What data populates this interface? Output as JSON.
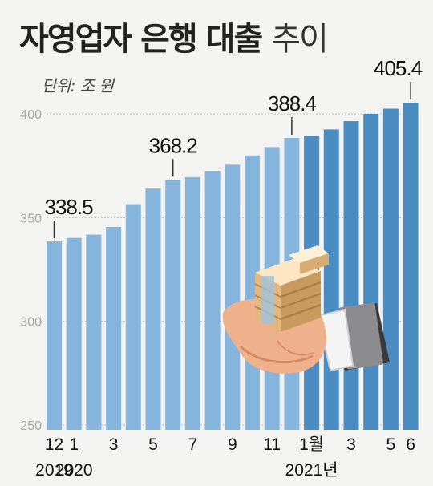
{
  "title": {
    "main": "자영업자 은행 대출",
    "light": "추이"
  },
  "unit": "단위: 조 원",
  "colors": {
    "bar_2019_2020": "#85b4dd",
    "bar_2021": "#4b8cc3",
    "background": "#f3f3f1"
  },
  "illustration": "hand-holding-money-icon",
  "chart_data": {
    "type": "bar",
    "title": "자영업자 은행 대출 추이",
    "ylabel": "단위: 조 원",
    "ylim": [
      250,
      410
    ],
    "yticks": [
      250,
      300,
      350,
      400
    ],
    "grid": true,
    "categories": [
      "2019-12",
      "2020-01",
      "2020-02",
      "2020-03",
      "2020-04",
      "2020-05",
      "2020-06",
      "2020-07",
      "2020-08",
      "2020-09",
      "2020-10",
      "2020-11",
      "2020-12",
      "2021-01",
      "2021-02",
      "2021-03",
      "2021-04",
      "2021-05",
      "2021-06"
    ],
    "values": [
      338.5,
      340.2,
      341.8,
      345.5,
      356.5,
      364.0,
      368.2,
      369.5,
      372.5,
      375.5,
      380.0,
      384.0,
      388.4,
      389.5,
      392.5,
      396.5,
      400.0,
      402.5,
      405.4
    ],
    "period": [
      "2019-2020",
      "2019-2020",
      "2019-2020",
      "2019-2020",
      "2019-2020",
      "2019-2020",
      "2019-2020",
      "2019-2020",
      "2019-2020",
      "2019-2020",
      "2019-2020",
      "2019-2020",
      "2019-2020",
      "2021",
      "2021",
      "2021",
      "2021",
      "2021",
      "2021"
    ],
    "x_tick_labels": [
      {
        "index": 0,
        "text": "12"
      },
      {
        "index": 1,
        "text": "1"
      },
      {
        "index": 3,
        "text": "3"
      },
      {
        "index": 5,
        "text": "5"
      },
      {
        "index": 7,
        "text": "7"
      },
      {
        "index": 9,
        "text": "9"
      },
      {
        "index": 11,
        "text": "11"
      },
      {
        "index": 13,
        "text": "1월"
      },
      {
        "index": 15,
        "text": "3"
      },
      {
        "index": 17,
        "text": "5"
      },
      {
        "index": 18,
        "text": "6"
      }
    ],
    "year_labels": [
      {
        "index": 0,
        "text": "2019"
      },
      {
        "index": 1,
        "text": "2020"
      },
      {
        "index": 13,
        "text": "2021년"
      }
    ],
    "data_labels": [
      {
        "index": 0,
        "text": "338.5"
      },
      {
        "index": 6,
        "text": "368.2"
      },
      {
        "index": 12,
        "text": "388.4"
      },
      {
        "index": 18,
        "text": "405.4"
      }
    ]
  }
}
